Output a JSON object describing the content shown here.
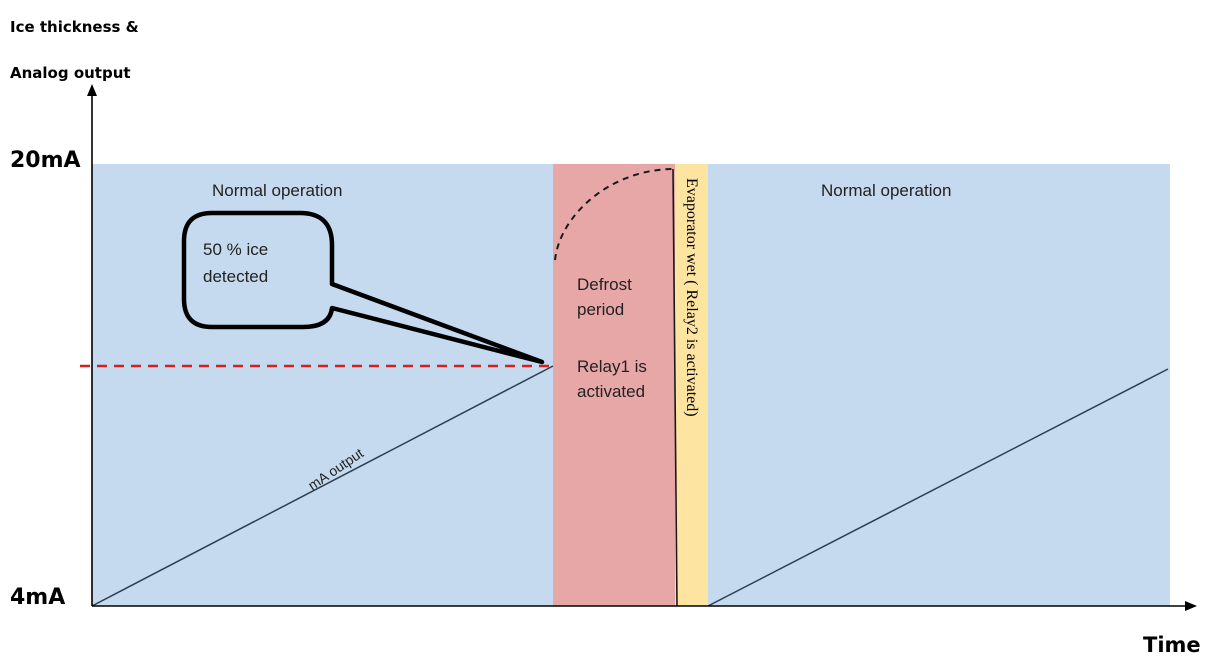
{
  "axes": {
    "y_title_line1": "Ice thickness &",
    "y_title_line2": "Analog output",
    "x_title": "Time",
    "y_max_label": "20mA",
    "y_min_label": "4mA"
  },
  "regions": {
    "normal_left": "Normal operation",
    "normal_right": "Normal operation",
    "defrost_line1": "Defrost",
    "defrost_line2": "period",
    "relay1_line1": "Relay1 is",
    "relay1_line2": "activated",
    "evaporator": "Evaporator wet ( Relay2 is activated)"
  },
  "callout": {
    "line1": "50 % ice",
    "line2": "detected"
  },
  "line_label": "mA output",
  "colors": {
    "normal": "#c5daef",
    "defrost": "#e8a7a7",
    "evaporator": "#fde4a1",
    "threshold": "#d62020",
    "output_line": "#2f3d52"
  }
}
